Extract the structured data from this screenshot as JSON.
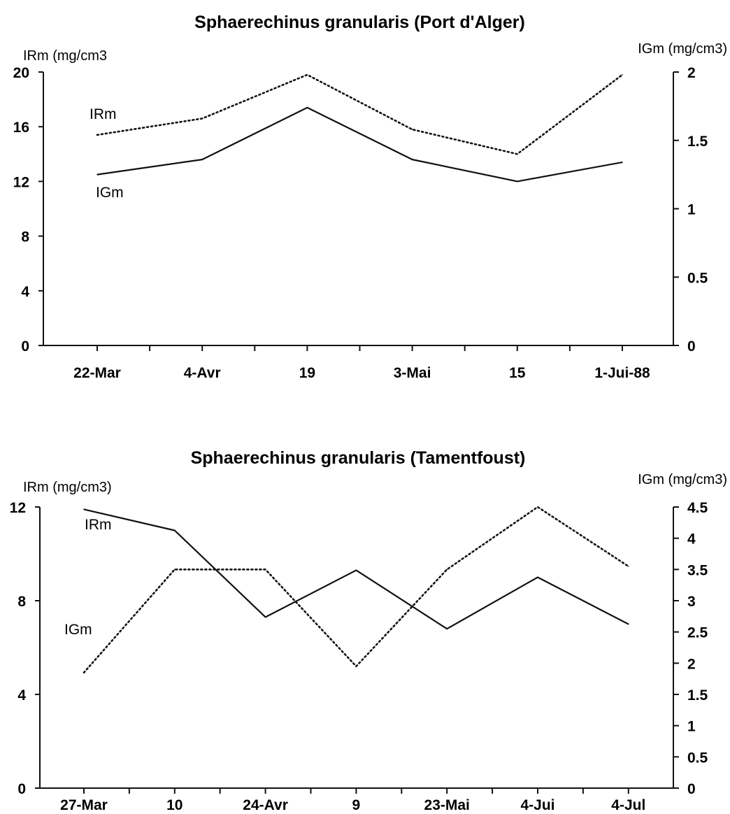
{
  "chart_data": [
    {
      "type": "line",
      "title": "Sphaerechinus granularis (Port d'Alger)",
      "categories": [
        "22-Mar",
        "4-Avr",
        "19",
        "3-Mai",
        "15",
        "1-Jui-88"
      ],
      "ylabel": "IRm (mg/cm3",
      "ylabel_right": "IGm (mg/cm3)",
      "ylim": [
        0,
        20
      ],
      "yticks": [
        "0",
        "4",
        "8",
        "12",
        "16",
        "20"
      ],
      "ylim_right": [
        0,
        2
      ],
      "yticks_right": [
        "0",
        "0.5",
        "1",
        "1.5",
        "2"
      ],
      "grid": false,
      "series": [
        {
          "name": "IRm",
          "axis": "left",
          "style": "solid",
          "values": [
            12.5,
            13.6,
            17.4,
            13.6,
            12.0,
            13.4
          ]
        },
        {
          "name": "IGm",
          "axis": "right",
          "style": "dotted",
          "values": [
            1.54,
            1.66,
            1.98,
            1.58,
            1.4,
            1.98
          ]
        }
      ]
    },
    {
      "type": "line",
      "title": "Sphaerechinus granularis (Tamentfoust)",
      "categories": [
        "27-Mar",
        "10",
        "24-Avr",
        "9",
        "23-Mai",
        "4-Jui",
        "4-Jul"
      ],
      "ylabel": "IRm (mg/cm3)",
      "ylabel_right": "IGm (mg/cm3)",
      "ylim": [
        0,
        12
      ],
      "yticks": [
        "0",
        "4",
        "8",
        "12"
      ],
      "ylim_right": [
        0,
        4.5
      ],
      "yticks_right": [
        "0",
        "0.5",
        "1",
        "1.5",
        "2",
        "2.5",
        "3",
        "3.5",
        "4",
        "4.5"
      ],
      "grid": false,
      "series": [
        {
          "name": "IRm",
          "axis": "left",
          "style": "solid",
          "values": [
            11.9,
            11.0,
            7.3,
            9.3,
            6.8,
            9.0,
            7.0
          ]
        },
        {
          "name": "IGm",
          "axis": "right",
          "style": "dotted",
          "values": [
            1.85,
            3.5,
            3.5,
            1.95,
            3.5,
            4.5,
            3.55
          ]
        }
      ]
    }
  ]
}
